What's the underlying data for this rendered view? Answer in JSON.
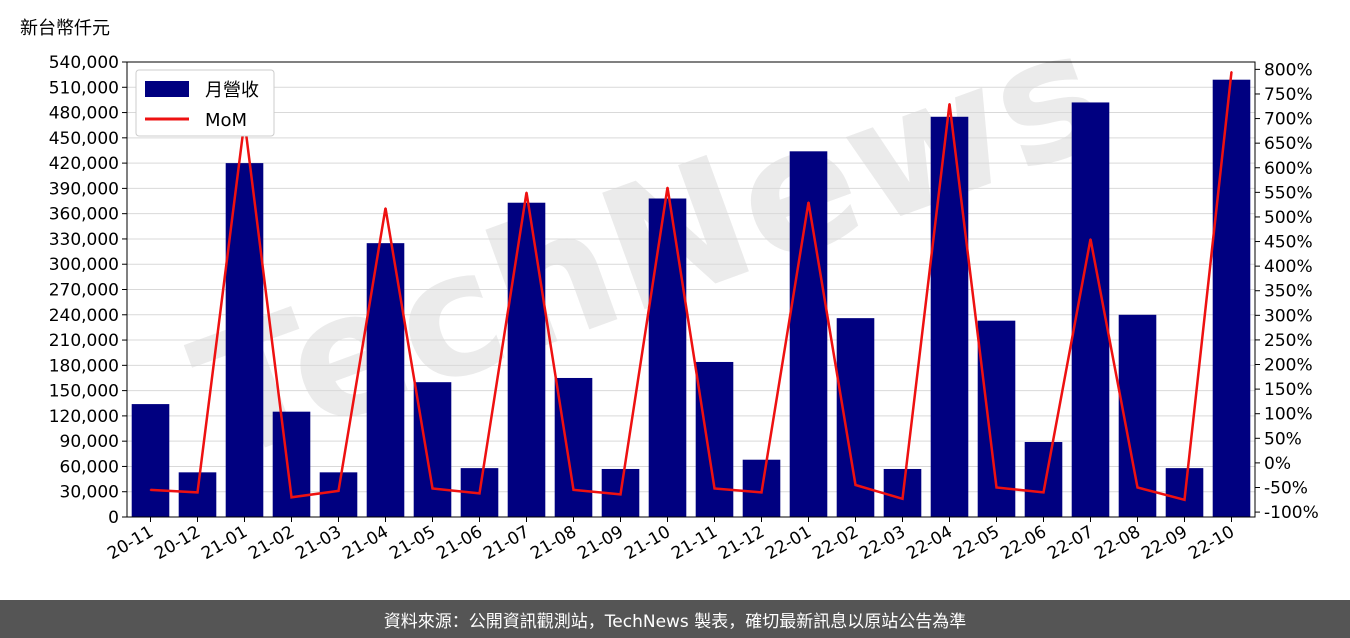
{
  "unit_label": "新台幣仟元",
  "footer_text": "資料來源：公開資訊觀測站，TechNews 製表，確切最新訊息以原站公告為準",
  "watermark_text": "TechNews",
  "chart_data": {
    "type": "bar",
    "categories": [
      "20-11",
      "20-12",
      "21-01",
      "21-02",
      "21-03",
      "21-04",
      "21-05",
      "21-06",
      "21-07",
      "21-08",
      "21-09",
      "21-10",
      "21-11",
      "21-12",
      "22-01",
      "22-02",
      "22-03",
      "22-04",
      "22-05",
      "22-06",
      "22-07",
      "22-08",
      "22-09",
      "22-10"
    ],
    "series": [
      {
        "name": "月營收",
        "axis": "left",
        "type": "bar",
        "color": "#000080",
        "values": [
          134000,
          53000,
          420000,
          125000,
          53000,
          325000,
          160000,
          58000,
          373000,
          165000,
          57000,
          378000,
          184000,
          68000,
          434000,
          236000,
          57000,
          475000,
          233000,
          89000,
          492000,
          240000,
          58000,
          519000
        ]
      },
      {
        "name": "MoM",
        "axis": "right",
        "type": "line",
        "color": "#ee1111",
        "values": [
          -55,
          -60,
          695,
          -70,
          -57,
          518,
          -52,
          -62,
          550,
          -55,
          -64,
          560,
          -52,
          -60,
          530,
          -45,
          -73,
          730,
          -50,
          -60,
          455,
          -50,
          -75,
          795
        ]
      }
    ],
    "y_left": {
      "range": [
        0,
        540000
      ],
      "ticks": [
        0,
        30000,
        60000,
        90000,
        120000,
        150000,
        180000,
        210000,
        240000,
        270000,
        300000,
        330000,
        360000,
        390000,
        420000,
        450000,
        480000,
        510000,
        540000
      ],
      "tick_labels": [
        "0",
        "30,000",
        "60,000",
        "90,000",
        "120,000",
        "150,000",
        "180,000",
        "210,000",
        "240,000",
        "270,000",
        "300,000",
        "330,000",
        "360,000",
        "390,000",
        "420,000",
        "450,000",
        "480,000",
        "510,000",
        "540,000"
      ]
    },
    "y_right": {
      "range": [
        -110,
        815
      ],
      "ticks": [
        -100,
        -50,
        0,
        50,
        100,
        150,
        200,
        250,
        300,
        350,
        400,
        450,
        500,
        550,
        600,
        650,
        700,
        750,
        800
      ],
      "tick_labels": [
        "-100%",
        "-50%",
        "0%",
        "50%",
        "100%",
        "150%",
        "200%",
        "250%",
        "300%",
        "350%",
        "400%",
        "450%",
        "500%",
        "550%",
        "600%",
        "650%",
        "700%",
        "750%",
        "800%"
      ]
    },
    "grid": true,
    "legend_position": "top-left"
  }
}
